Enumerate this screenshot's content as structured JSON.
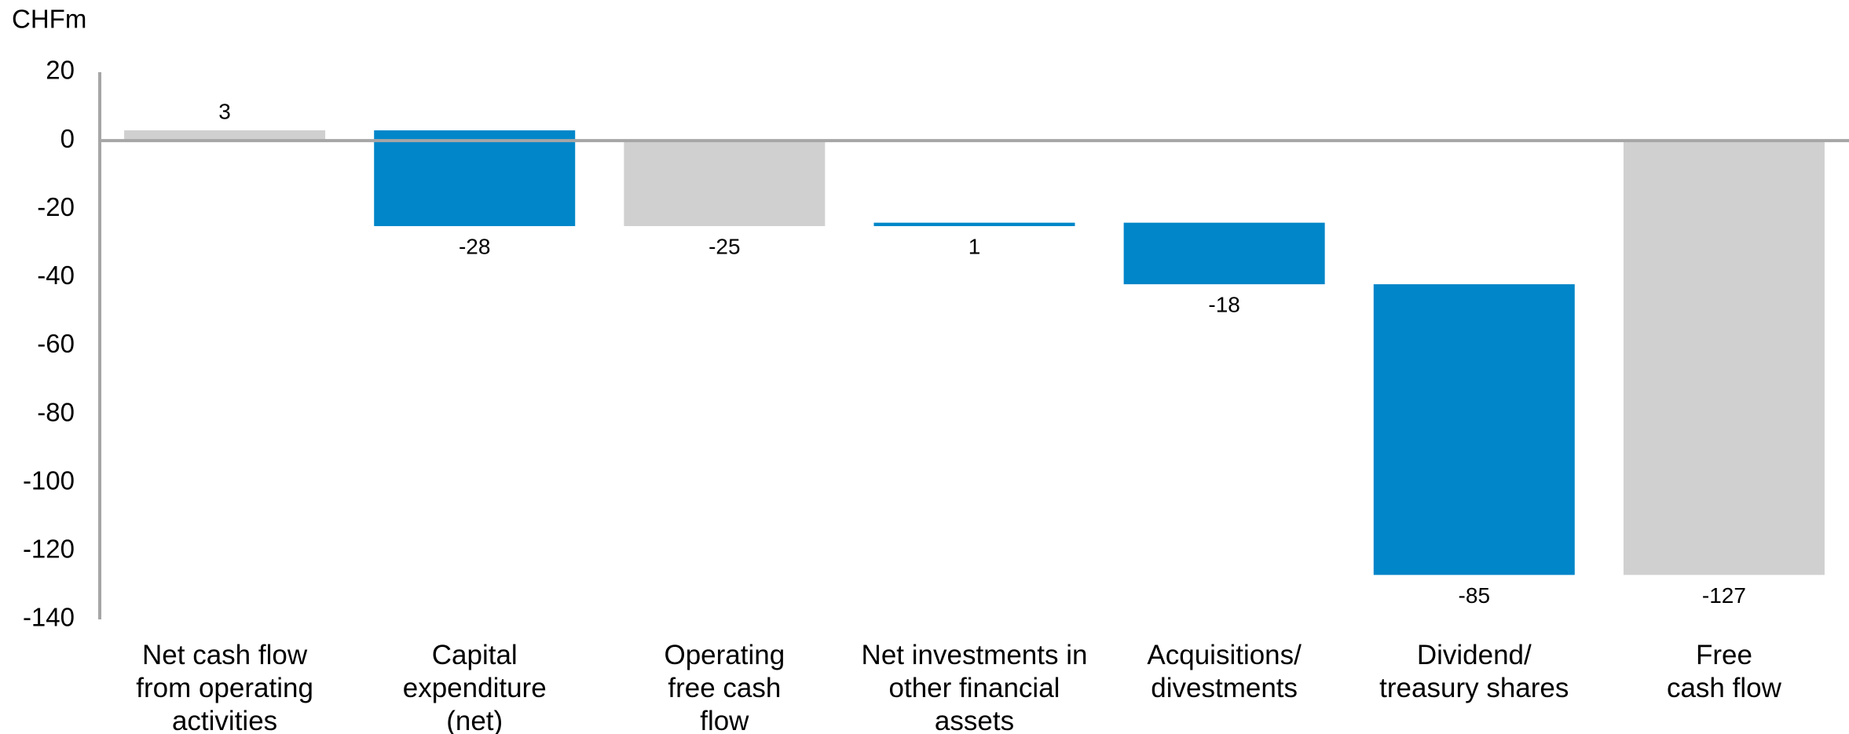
{
  "chart_data": {
    "type": "waterfall",
    "y_label": "CHFm",
    "categories": [
      "Net cash flow\nfrom operating\nactivities",
      "Capital\nexpenditure\n(net)",
      "Operating\nfree cash\nflow",
      "Net investments in\nother financial\nassets",
      "Acquisitions/\ndivestments",
      "Dividend/\ntreasury shares",
      "Free\ncash flow"
    ],
    "values": [
      3,
      -28,
      -25,
      1,
      -18,
      -85,
      -127
    ],
    "totals": [
      true,
      false,
      true,
      false,
      false,
      false,
      true
    ],
    "colors": [
      "#d0d0d0",
      "#0086c9",
      "#d0d0d0",
      "#0086c9",
      "#0086c9",
      "#0086c9",
      "#d0d0d0"
    ],
    "ylim": [
      -140,
      20
    ],
    "yticks": [
      20,
      0,
      -20,
      -40,
      -60,
      -80,
      -100,
      -120,
      -140
    ],
    "grid": false
  }
}
